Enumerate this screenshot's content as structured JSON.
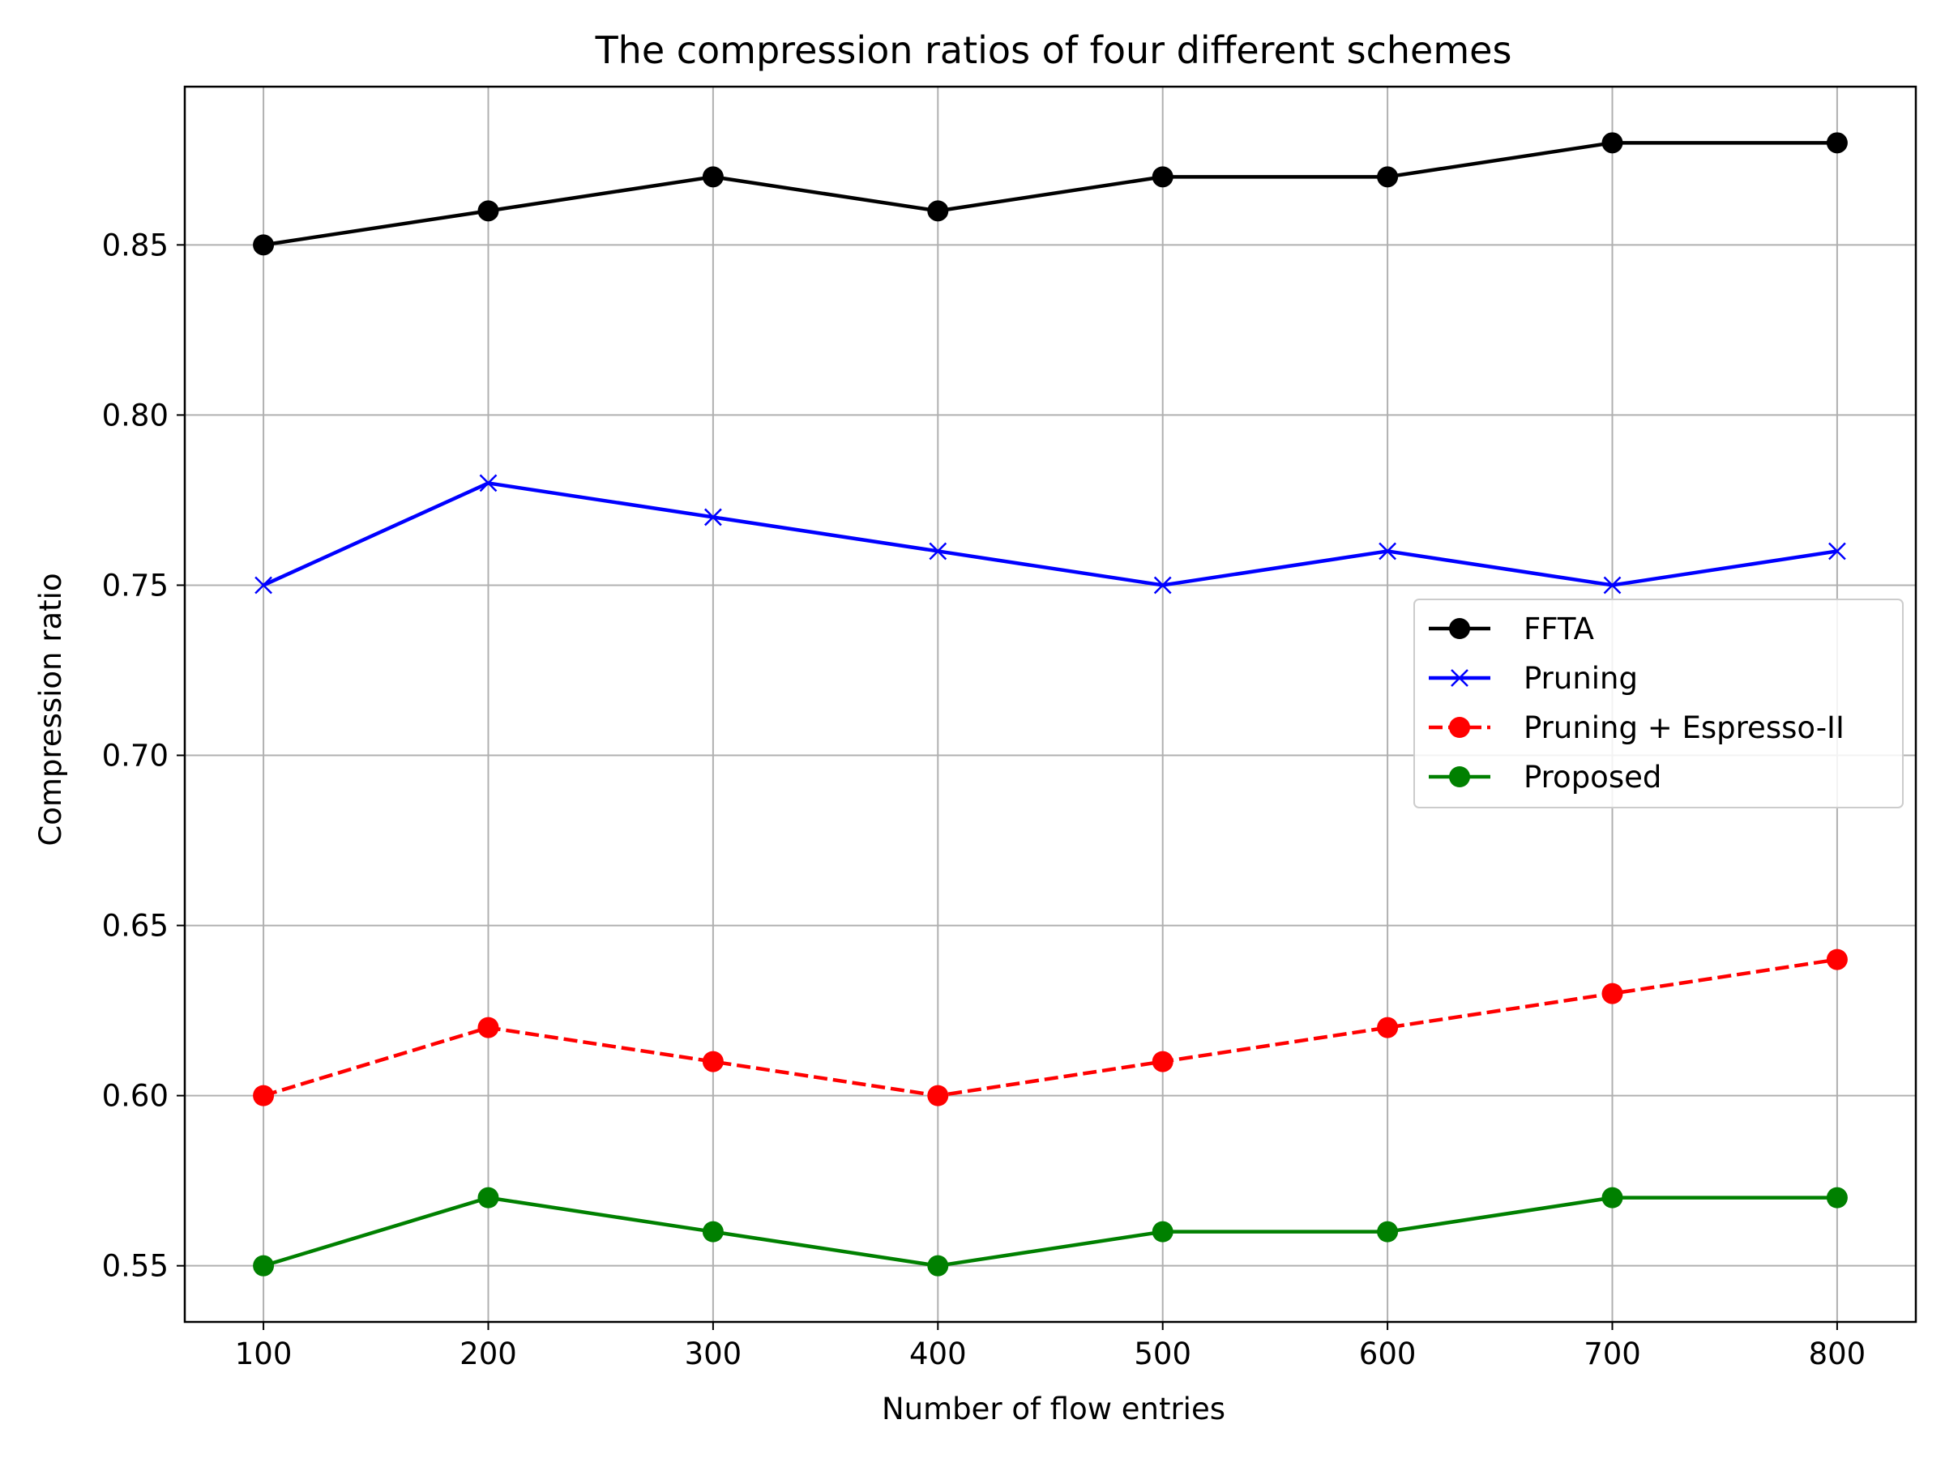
{
  "chart_data": {
    "type": "line",
    "title": "The compression ratios of four different schemes",
    "xlabel": "Number of flow entries",
    "ylabel": "Compression ratio",
    "x": [
      100,
      200,
      300,
      400,
      500,
      600,
      700,
      800
    ],
    "xlim": [
      65,
      835
    ],
    "ylim": [
      0.5335,
      0.8965
    ],
    "xticks": [
      "100",
      "200",
      "300",
      "400",
      "500",
      "600",
      "700",
      "800"
    ],
    "yticks": [
      "0.55",
      "0.60",
      "0.65",
      "0.70",
      "0.75",
      "0.80",
      "0.85"
    ],
    "grid": true,
    "legend_position": "center-right",
    "series": [
      {
        "name": "FFTA",
        "color": "#000000",
        "marker": "circle",
        "linestyle": "solid",
        "values": [
          0.85,
          0.86,
          0.87,
          0.86,
          0.87,
          0.87,
          0.88,
          0.88
        ]
      },
      {
        "name": "Pruning",
        "color": "#0000ff",
        "marker": "x",
        "linestyle": "solid",
        "values": [
          0.75,
          0.78,
          0.77,
          0.76,
          0.75,
          0.76,
          0.75,
          0.76
        ]
      },
      {
        "name": "Pruning + Espresso-II",
        "color": "#ff0000",
        "marker": "circle",
        "linestyle": "dashed",
        "values": [
          0.6,
          0.62,
          0.61,
          0.6,
          0.61,
          0.62,
          0.63,
          0.64
        ]
      },
      {
        "name": "Proposed",
        "color": "#008000",
        "marker": "circle",
        "linestyle": "solid",
        "values": [
          0.55,
          0.57,
          0.56,
          0.55,
          0.56,
          0.56,
          0.57,
          0.57
        ]
      }
    ]
  }
}
